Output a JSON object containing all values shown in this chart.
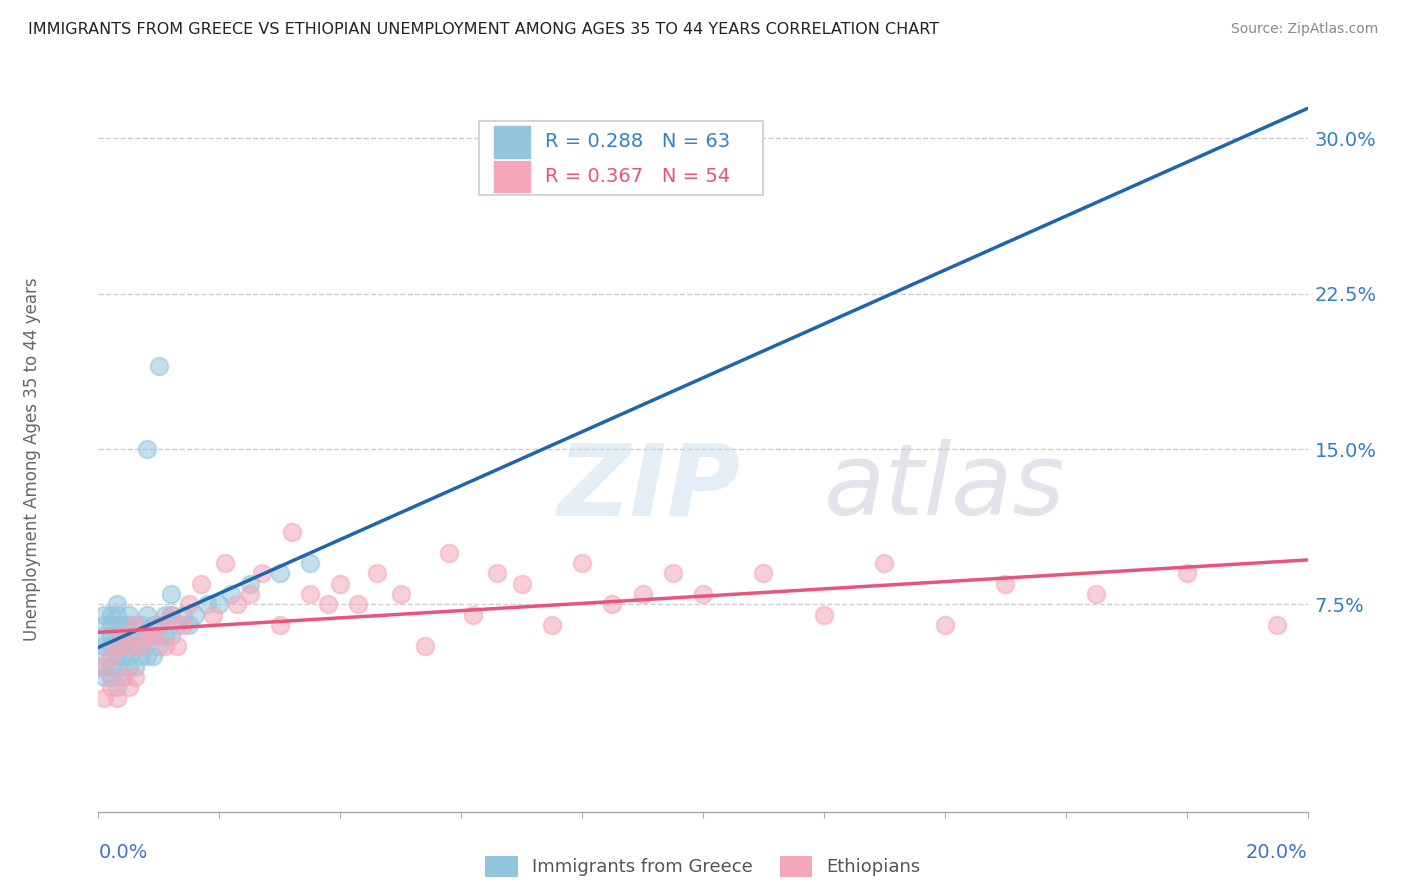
{
  "title": "IMMIGRANTS FROM GREECE VS ETHIOPIAN UNEMPLOYMENT AMONG AGES 35 TO 44 YEARS CORRELATION CHART",
  "source": "Source: ZipAtlas.com",
  "ylabel_label": "Unemployment Among Ages 35 to 44 years",
  "legend_label1": "Immigrants from Greece",
  "legend_label2": "Ethiopians",
  "legend_R1": "R = 0.288",
  "legend_N1": "N = 63",
  "legend_R2": "R = 0.367",
  "legend_N2": "N = 54",
  "color_blue": "#92c5de",
  "color_pink": "#f4a7b9",
  "color_blue_line": "#2166ac",
  "color_blue_dash": "#92c5de",
  "color_pink_line": "#e8547a",
  "color_text_blue": "#3182bd",
  "color_text_pink": "#e8547a",
  "color_axis": "#4472c4",
  "xlim": [
    0.0,
    0.2
  ],
  "ylim": [
    -0.025,
    0.315
  ],
  "ytick_vals": [
    0.075,
    0.15,
    0.225,
    0.3
  ],
  "ytick_labels": [
    "7.5%",
    "15.0%",
    "22.5%",
    "30.0%"
  ],
  "blue_x": [
    0.0005,
    0.001,
    0.001,
    0.001,
    0.001,
    0.001,
    0.001,
    0.002,
    0.002,
    0.002,
    0.002,
    0.002,
    0.002,
    0.003,
    0.003,
    0.003,
    0.003,
    0.003,
    0.003,
    0.003,
    0.003,
    0.004,
    0.004,
    0.004,
    0.004,
    0.004,
    0.005,
    0.005,
    0.005,
    0.005,
    0.005,
    0.006,
    0.006,
    0.006,
    0.006,
    0.007,
    0.007,
    0.007,
    0.008,
    0.008,
    0.008,
    0.009,
    0.009,
    0.009,
    0.01,
    0.01,
    0.011,
    0.011,
    0.012,
    0.012,
    0.013,
    0.014,
    0.015,
    0.016,
    0.018,
    0.02,
    0.022,
    0.025,
    0.03,
    0.035,
    0.01,
    0.008,
    0.012
  ],
  "blue_y": [
    0.045,
    0.04,
    0.05,
    0.06,
    0.055,
    0.065,
    0.07,
    0.04,
    0.045,
    0.055,
    0.06,
    0.065,
    0.07,
    0.035,
    0.045,
    0.05,
    0.055,
    0.06,
    0.065,
    0.07,
    0.075,
    0.04,
    0.05,
    0.055,
    0.06,
    0.065,
    0.045,
    0.05,
    0.06,
    0.065,
    0.07,
    0.045,
    0.055,
    0.06,
    0.065,
    0.05,
    0.055,
    0.065,
    0.05,
    0.06,
    0.07,
    0.05,
    0.06,
    0.065,
    0.055,
    0.065,
    0.06,
    0.07,
    0.06,
    0.07,
    0.065,
    0.07,
    0.065,
    0.07,
    0.075,
    0.075,
    0.08,
    0.085,
    0.09,
    0.095,
    0.19,
    0.15,
    0.08
  ],
  "pink_x": [
    0.001,
    0.001,
    0.002,
    0.002,
    0.003,
    0.003,
    0.004,
    0.004,
    0.005,
    0.005,
    0.006,
    0.006,
    0.007,
    0.008,
    0.009,
    0.01,
    0.011,
    0.012,
    0.013,
    0.014,
    0.015,
    0.017,
    0.019,
    0.021,
    0.023,
    0.025,
    0.027,
    0.03,
    0.032,
    0.035,
    0.038,
    0.04,
    0.043,
    0.046,
    0.05,
    0.054,
    0.058,
    0.062,
    0.066,
    0.07,
    0.075,
    0.08,
    0.085,
    0.09,
    0.095,
    0.1,
    0.11,
    0.12,
    0.13,
    0.14,
    0.15,
    0.165,
    0.18,
    0.195
  ],
  "pink_y": [
    0.03,
    0.045,
    0.035,
    0.05,
    0.03,
    0.055,
    0.04,
    0.06,
    0.035,
    0.055,
    0.04,
    0.065,
    0.055,
    0.06,
    0.06,
    0.065,
    0.055,
    0.07,
    0.055,
    0.065,
    0.075,
    0.085,
    0.07,
    0.095,
    0.075,
    0.08,
    0.09,
    0.065,
    0.11,
    0.08,
    0.075,
    0.085,
    0.075,
    0.09,
    0.08,
    0.055,
    0.1,
    0.07,
    0.09,
    0.085,
    0.065,
    0.095,
    0.075,
    0.08,
    0.09,
    0.08,
    0.09,
    0.07,
    0.095,
    0.065,
    0.085,
    0.08,
    0.09,
    0.065
  ]
}
